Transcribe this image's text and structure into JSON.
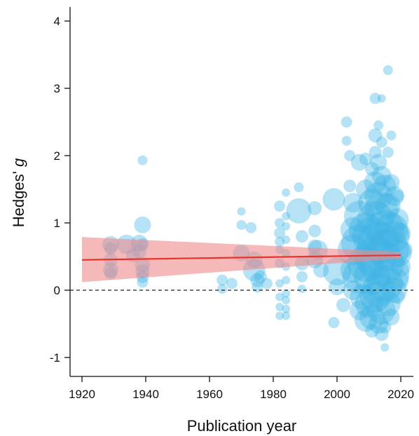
{
  "chart_data": {
    "type": "scatter",
    "xlabel": "Publication year",
    "ylabel_prefix": "Hedges'",
    "ylabel_italic": "g",
    "xlim": [
      1915,
      2024
    ],
    "ylim": [
      -1.2,
      4.2
    ],
    "xticks": [
      1920,
      1940,
      1960,
      1980,
      2000,
      2020
    ],
    "yticks": [
      -1,
      0,
      1,
      2,
      3,
      4
    ],
    "reference_line": {
      "y": 0,
      "style": "dashed"
    },
    "regression": {
      "x": [
        1920,
        2020
      ],
      "y": [
        0.45,
        0.52
      ],
      "ci_lower": [
        0.12,
        0.47
      ],
      "ci_upper": [
        0.79,
        0.57
      ],
      "line_color": "#e8352c",
      "band_color": "#f08a8c"
    },
    "point_color": "#3cb4e6",
    "points": [
      {
        "x": 1929,
        "y": 0.68,
        "r": 12
      },
      {
        "x": 1929,
        "y": 0.62,
        "r": 9
      },
      {
        "x": 1929,
        "y": 0.45,
        "r": 10
      },
      {
        "x": 1929,
        "y": 0.3,
        "r": 11
      },
      {
        "x": 1929,
        "y": 0.25,
        "r": 9
      },
      {
        "x": 1934,
        "y": 0.68,
        "r": 14
      },
      {
        "x": 1936,
        "y": 0.52,
        "r": 10
      },
      {
        "x": 1938,
        "y": 0.7,
        "r": 12
      },
      {
        "x": 1938,
        "y": 0.58,
        "r": 10
      },
      {
        "x": 1939,
        "y": 0.97,
        "r": 12
      },
      {
        "x": 1939,
        "y": 0.68,
        "r": 9
      },
      {
        "x": 1939,
        "y": 0.38,
        "r": 11
      },
      {
        "x": 1939,
        "y": 0.28,
        "r": 10
      },
      {
        "x": 1939,
        "y": 0.2,
        "r": 9
      },
      {
        "x": 1939,
        "y": 0.12,
        "r": 8
      },
      {
        "x": 1939,
        "y": 1.93,
        "r": 7
      },
      {
        "x": 1964,
        "y": 0.15,
        "r": 8
      },
      {
        "x": 1964,
        "y": 0.02,
        "r": 7
      },
      {
        "x": 1967,
        "y": 0.1,
        "r": 8
      },
      {
        "x": 1970,
        "y": 1.17,
        "r": 6
      },
      {
        "x": 1970,
        "y": 0.97,
        "r": 7
      },
      {
        "x": 1970,
        "y": 0.55,
        "r": 12
      },
      {
        "x": 1973,
        "y": 0.93,
        "r": 8
      },
      {
        "x": 1974,
        "y": 0.3,
        "r": 16
      },
      {
        "x": 1974,
        "y": 0.45,
        "r": 12
      },
      {
        "x": 1975,
        "y": 0.15,
        "r": 10
      },
      {
        "x": 1975,
        "y": 0.05,
        "r": 8
      },
      {
        "x": 1976,
        "y": 0.2,
        "r": 9
      },
      {
        "x": 1978,
        "y": 0.1,
        "r": 8
      },
      {
        "x": 1982,
        "y": 1.25,
        "r": 8
      },
      {
        "x": 1982,
        "y": 1.0,
        "r": 7
      },
      {
        "x": 1982,
        "y": 0.85,
        "r": 8
      },
      {
        "x": 1982,
        "y": 0.72,
        "r": 7
      },
      {
        "x": 1982,
        "y": 0.6,
        "r": 6
      },
      {
        "x": 1982,
        "y": 0.4,
        "r": 7
      },
      {
        "x": 1982,
        "y": 0.1,
        "r": 6
      },
      {
        "x": 1982,
        "y": -0.1,
        "r": 6
      },
      {
        "x": 1982,
        "y": -0.25,
        "r": 6
      },
      {
        "x": 1982,
        "y": -0.38,
        "r": 6
      },
      {
        "x": 1984,
        "y": 1.45,
        "r": 6
      },
      {
        "x": 1984,
        "y": 1.1,
        "r": 6
      },
      {
        "x": 1984,
        "y": 0.95,
        "r": 6
      },
      {
        "x": 1984,
        "y": 0.75,
        "r": 6
      },
      {
        "x": 1984,
        "y": 0.55,
        "r": 6
      },
      {
        "x": 1984,
        "y": 0.35,
        "r": 6
      },
      {
        "x": 1984,
        "y": 0.15,
        "r": 6
      },
      {
        "x": 1984,
        "y": -0.05,
        "r": 6
      },
      {
        "x": 1984,
        "y": -0.15,
        "r": 6
      },
      {
        "x": 1984,
        "y": -0.28,
        "r": 6
      },
      {
        "x": 1984,
        "y": -0.38,
        "r": 6
      },
      {
        "x": 1988,
        "y": 1.18,
        "r": 18
      },
      {
        "x": 1988,
        "y": 1.53,
        "r": 7
      },
      {
        "x": 1989,
        "y": 0.8,
        "r": 9
      },
      {
        "x": 1989,
        "y": 0.4,
        "r": 10
      },
      {
        "x": 1989,
        "y": 0.2,
        "r": 8
      },
      {
        "x": 1989,
        "y": 0.02,
        "r": 6
      },
      {
        "x": 1993,
        "y": 1.22,
        "r": 10
      },
      {
        "x": 1993,
        "y": 0.88,
        "r": 9
      },
      {
        "x": 1993,
        "y": 0.65,
        "r": 10
      },
      {
        "x": 1993,
        "y": 0.45,
        "r": 12
      },
      {
        "x": 1994,
        "y": 0.6,
        "r": 14
      },
      {
        "x": 1995,
        "y": 0.3,
        "r": 11
      },
      {
        "x": 1999,
        "y": 1.35,
        "r": 16
      },
      {
        "x": 2000,
        "y": 0.28,
        "r": 20
      },
      {
        "x": 1999,
        "y": -0.48,
        "r": 8
      },
      {
        "x": 2000,
        "y": 0.05,
        "r": 12
      },
      {
        "x": 2002,
        "y": -0.22,
        "r": 10
      },
      {
        "x": 2003,
        "y": 2.5,
        "r": 8
      },
      {
        "x": 2003,
        "y": 2.22,
        "r": 7
      },
      {
        "x": 2004,
        "y": 2.0,
        "r": 8
      },
      {
        "x": 2004,
        "y": 1.55,
        "r": 9
      },
      {
        "x": 2005,
        "y": 1.3,
        "r": 14
      },
      {
        "x": 2005,
        "y": 0.9,
        "r": 18
      },
      {
        "x": 2005,
        "y": 0.6,
        "r": 22
      },
      {
        "x": 2005,
        "y": 0.3,
        "r": 18
      },
      {
        "x": 2005,
        "y": 0.0,
        "r": 14
      },
      {
        "x": 2007,
        "y": 1.9,
        "r": 12
      },
      {
        "x": 2007,
        "y": 1.1,
        "r": 22
      },
      {
        "x": 2007,
        "y": 0.7,
        "r": 26
      },
      {
        "x": 2007,
        "y": 0.2,
        "r": 24
      },
      {
        "x": 2007,
        "y": -0.3,
        "r": 14
      },
      {
        "x": 2008,
        "y": -0.1,
        "r": 18
      },
      {
        "x": 2009,
        "y": 1.95,
        "r": 9
      },
      {
        "x": 2009,
        "y": 1.5,
        "r": 14
      },
      {
        "x": 2009,
        "y": 0.9,
        "r": 24
      },
      {
        "x": 2009,
        "y": 0.4,
        "r": 26
      },
      {
        "x": 2009,
        "y": -0.45,
        "r": 16
      },
      {
        "x": 2010,
        "y": -0.2,
        "r": 20
      },
      {
        "x": 2011,
        "y": 1.8,
        "r": 10
      },
      {
        "x": 2011,
        "y": 1.3,
        "r": 20
      },
      {
        "x": 2011,
        "y": 0.8,
        "r": 28
      },
      {
        "x": 2011,
        "y": 0.2,
        "r": 26
      },
      {
        "x": 2011,
        "y": -0.4,
        "r": 18
      },
      {
        "x": 2011,
        "y": -0.6,
        "r": 10
      },
      {
        "x": 2012,
        "y": 2.85,
        "r": 8
      },
      {
        "x": 2012,
        "y": 2.3,
        "r": 10
      },
      {
        "x": 2012,
        "y": 2.05,
        "r": 9
      },
      {
        "x": 2012,
        "y": 1.6,
        "r": 16
      },
      {
        "x": 2012,
        "y": 1.05,
        "r": 26
      },
      {
        "x": 2012,
        "y": 0.5,
        "r": 30
      },
      {
        "x": 2012,
        "y": -0.1,
        "r": 22
      },
      {
        "x": 2013,
        "y": 2.45,
        "r": 7
      },
      {
        "x": 2013,
        "y": 1.9,
        "r": 12
      },
      {
        "x": 2013,
        "y": 1.4,
        "r": 20
      },
      {
        "x": 2013,
        "y": 0.7,
        "r": 30
      },
      {
        "x": 2013,
        "y": 0.0,
        "r": 24
      },
      {
        "x": 2013,
        "y": -0.5,
        "r": 14
      },
      {
        "x": 2014,
        "y": 2.85,
        "r": 6
      },
      {
        "x": 2014,
        "y": 2.2,
        "r": 8
      },
      {
        "x": 2014,
        "y": 1.7,
        "r": 14
      },
      {
        "x": 2014,
        "y": 1.2,
        "r": 24
      },
      {
        "x": 2014,
        "y": 0.4,
        "r": 32
      },
      {
        "x": 2014,
        "y": -0.3,
        "r": 20
      },
      {
        "x": 2014,
        "y": -0.65,
        "r": 10
      },
      {
        "x": 2015,
        "y": -0.85,
        "r": 6
      },
      {
        "x": 2015,
        "y": -0.55,
        "r": 9
      },
      {
        "x": 2015,
        "y": 1.55,
        "r": 16
      },
      {
        "x": 2015,
        "y": 0.9,
        "r": 28
      },
      {
        "x": 2015,
        "y": 0.1,
        "r": 26
      },
      {
        "x": 2016,
        "y": 3.27,
        "r": 7
      },
      {
        "x": 2016,
        "y": 2.05,
        "r": 8
      },
      {
        "x": 2016,
        "y": 1.25,
        "r": 18
      },
      {
        "x": 2016,
        "y": 0.6,
        "r": 30
      },
      {
        "x": 2016,
        "y": -0.2,
        "r": 18
      },
      {
        "x": 2017,
        "y": 2.3,
        "r": 7
      },
      {
        "x": 2017,
        "y": 1.6,
        "r": 12
      },
      {
        "x": 2017,
        "y": 0.9,
        "r": 24
      },
      {
        "x": 2017,
        "y": 0.25,
        "r": 26
      },
      {
        "x": 2017,
        "y": -0.4,
        "r": 12
      },
      {
        "x": 2018,
        "y": 1.4,
        "r": 14
      },
      {
        "x": 2018,
        "y": 0.8,
        "r": 22
      },
      {
        "x": 2018,
        "y": 0.0,
        "r": 18
      },
      {
        "x": 2019,
        "y": 1.4,
        "r": 9
      },
      {
        "x": 2019,
        "y": 1.05,
        "r": 16
      },
      {
        "x": 2019,
        "y": 0.55,
        "r": 20
      },
      {
        "x": 2019,
        "y": 0.15,
        "r": 16
      },
      {
        "x": 2019,
        "y": -0.1,
        "r": 10
      },
      {
        "x": 2020,
        "y": 0.85,
        "r": 14
      },
      {
        "x": 2020,
        "y": 0.35,
        "r": 14
      },
      {
        "x": 2021,
        "y": 0.6,
        "r": 12
      }
    ]
  }
}
